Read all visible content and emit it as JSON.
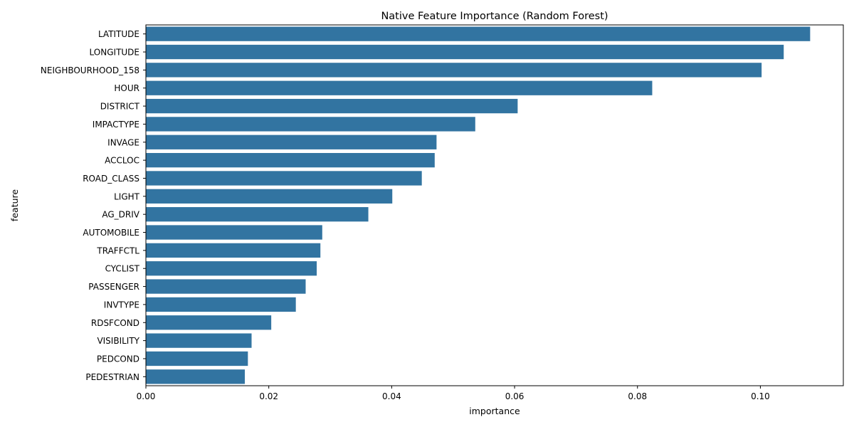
{
  "chart_data": {
    "type": "bar",
    "orientation": "horizontal",
    "title": "Native Feature Importance (Random Forest)",
    "xlabel": "importance",
    "ylabel": "feature",
    "xlim": [
      0,
      0.1135
    ],
    "xticks": [
      0.0,
      0.02,
      0.04,
      0.06,
      0.08,
      0.1
    ],
    "xtick_labels": [
      "0.00",
      "0.02",
      "0.04",
      "0.06",
      "0.08",
      "0.10"
    ],
    "grid": false,
    "legend": "none",
    "bar_color": "#3274a1",
    "categories": [
      "LATITUDE",
      "LONGITUDE",
      "NEIGHBOURHOOD_158",
      "HOUR",
      "DISTRICT",
      "IMPACTYPE",
      "INVAGE",
      "ACCLOC",
      "ROAD_CLASS",
      "LIGHT",
      "AG_DRIV",
      "AUTOMOBILE",
      "TRAFFCTL",
      "CYCLIST",
      "PASSENGER",
      "INVTYPE",
      "RDSFCOND",
      "VISIBILITY",
      "PEDCOND",
      "PEDESTRIAN"
    ],
    "values": [
      0.1081,
      0.1038,
      0.1002,
      0.0824,
      0.0605,
      0.0536,
      0.0473,
      0.047,
      0.0449,
      0.0401,
      0.0362,
      0.0287,
      0.0284,
      0.0278,
      0.026,
      0.0244,
      0.0204,
      0.0172,
      0.0166,
      0.0161
    ]
  }
}
